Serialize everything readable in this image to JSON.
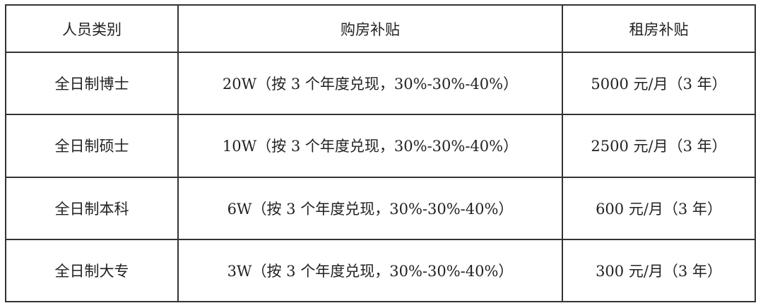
{
  "table": {
    "headers": [
      "人员类别",
      "购房补贴",
      "租房补贴"
    ],
    "rows": [
      [
        "全日制博士",
        "20W（按 3 个年度兑现，30%-30%-40%）",
        "5000 元/月（3 年）"
      ],
      [
        "全日制硕士",
        "10W（按 3 个年度兑现，30%-30%-40%）",
        "2500 元/月（3 年）"
      ],
      [
        "全日制本科",
        "6W（按 3 个年度兑现，30%-30%-40%）",
        "600 元/月（3 年）"
      ],
      [
        "全日制大专",
        "3W（按 3 个年度兑现，30%-30%-40%）",
        "300 元/月（3 年）"
      ]
    ]
  }
}
